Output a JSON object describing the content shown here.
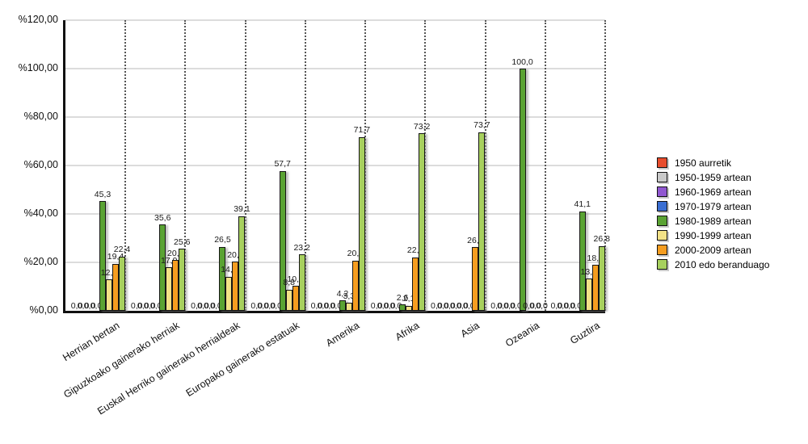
{
  "chart_data": {
    "type": "bar",
    "title": "",
    "categories": [
      "Herrian bertan",
      "Gipuzkoako gainerako herriak",
      "Euskal Herriko gainerako herrialdeak",
      "Europako gainerako estatuak",
      "Amerika",
      "Afrika",
      "Asia",
      "Ozeania",
      "Guztira"
    ],
    "series": [
      {
        "name": "1950 aurretik",
        "color": "#e74c2c",
        "values": [
          0,
          0,
          0,
          0,
          0,
          0,
          0,
          0,
          0
        ]
      },
      {
        "name": "1950-1959 artean",
        "color": "#c9c9c9",
        "values": [
          0,
          0,
          0,
          0,
          0,
          0,
          0,
          0,
          0
        ]
      },
      {
        "name": "1960-1969 artean",
        "color": "#9057d0",
        "values": [
          0,
          0,
          0,
          0,
          0,
          0,
          0,
          0,
          0
        ]
      },
      {
        "name": "1970-1979 artean",
        "color": "#3a6ed2",
        "values": [
          0,
          0,
          0,
          0,
          0,
          0,
          0,
          0,
          0
        ]
      },
      {
        "name": "1980-1989 artean",
        "color": "#5aa333",
        "values": [
          45.3,
          35.6,
          26.5,
          57.7,
          4.2,
          2.6,
          0,
          100.0,
          41.1
        ]
      },
      {
        "name": "1990-1999 artean",
        "color": "#f3e287",
        "values": [
          12.9,
          17.9,
          14.1,
          8.8,
          3.3,
          2.1,
          0,
          0,
          13.2
        ]
      },
      {
        "name": "2000-2009 artean",
        "color": "#f59d20",
        "values": [
          19.4,
          20.9,
          20.3,
          10.3,
          20.8,
          22.1,
          26.3,
          0,
          18.9
        ]
      },
      {
        "name": "2010 edo beranduago",
        "color": "#a7d05e",
        "values": [
          22.4,
          25.6,
          39.1,
          23.2,
          71.7,
          73.2,
          73.7,
          0,
          26.8
        ]
      }
    ],
    "y_axis": {
      "min": 0,
      "max": 120,
      "step": 20,
      "tick_labels": [
        "%0,00",
        "%20,00",
        "%40,00",
        "%60,00",
        "%80,00",
        "%100,00",
        "%120,00"
      ]
    },
    "value_label_format": "comma-decimal-1",
    "zero_label": "0,0",
    "grid": true,
    "group_separators": "dotted",
    "legend_position": "right",
    "colors": {
      "axis": "#111111",
      "gridline": "#dcdcdc",
      "background": "#ffffff"
    }
  }
}
